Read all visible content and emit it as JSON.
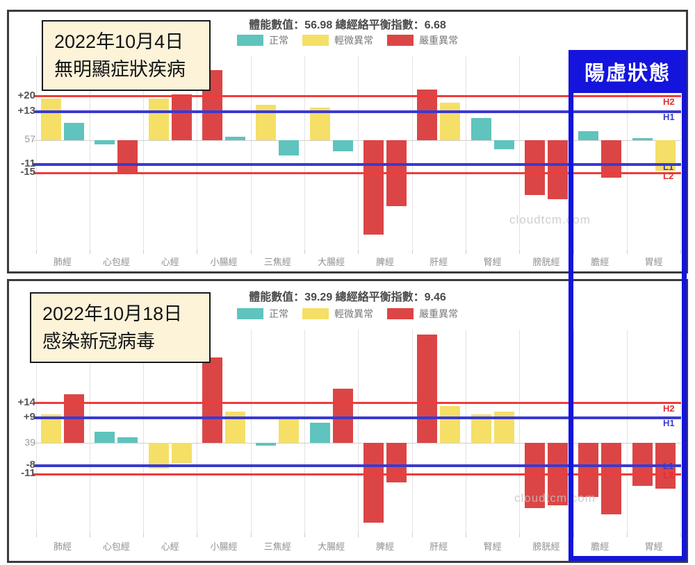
{
  "legend": {
    "normal": "正常",
    "mild": "輕微異常",
    "severe": "嚴重異常"
  },
  "watermark": "cloudtcm.com",
  "highlight_box": {
    "label": "陽虛狀態"
  },
  "colors": {
    "normal": "#5ec4bd",
    "mild": "#f5df66",
    "severe": "#dc4545",
    "line_high": "#ef3b3b",
    "line_low": "#3a3ad0",
    "highlight": "#1414dd",
    "annotation_bg": "#fcf3d9"
  },
  "charts": [
    {
      "title": "體能數值：56.98 總經絡平衡指數：6.68",
      "annotation": {
        "line1": "2022年10月4日",
        "line2": "無明顯症狀疾病"
      },
      "y_axis": {
        "h2": "+20",
        "h1": "+13",
        "baseline": "57",
        "l1": "-11",
        "l2": "-15"
      },
      "right_labels": {
        "h2": "H2",
        "h1": "H1",
        "l1": "L1",
        "l2": "L2"
      },
      "chart_data": {
        "type": "bar",
        "title": "體能數值：56.98 總經絡平衡指數：6.68",
        "categories": [
          "肺經",
          "心包經",
          "心經",
          "小腸經",
          "三焦經",
          "大腸經",
          "脾經",
          "肝經",
          "腎經",
          "膀胱經",
          "膽經",
          "胃經"
        ],
        "baseline_value": 57,
        "thresholds": {
          "H2": 20,
          "H1": 13,
          "L1": -11,
          "L2": -15
        },
        "legend_entries": [
          "正常",
          "輕微異常",
          "嚴重異常"
        ],
        "series": [
          {
            "name": "bar1",
            "values": [
              19,
              -2,
              19,
              32,
              16,
              15,
              -43,
              23,
              10,
              -25,
              4,
              1
            ],
            "status": [
              "mild",
              "normal",
              "mild",
              "severe",
              "mild",
              "mild",
              "severe",
              "severe",
              "normal",
              "severe",
              "normal",
              "normal"
            ]
          },
          {
            "name": "bar2",
            "values": [
              8,
              -15,
              21,
              1.5,
              -7,
              -5,
              -30,
              17,
              -4,
              -27,
              -17,
              -14
            ],
            "status": [
              "normal",
              "severe",
              "severe",
              "normal",
              "normal",
              "normal",
              "severe",
              "mild",
              "normal",
              "severe",
              "severe",
              "mild"
            ]
          }
        ]
      }
    },
    {
      "title": "體能數值：39.29 總經絡平衡指數：9.46",
      "annotation": {
        "line1": "2022年10月18日",
        "line2": "感染新冠病毒"
      },
      "y_axis": {
        "h2": "+14",
        "h1": "+9",
        "baseline": "39",
        "l1": "-8",
        "l2": "-11"
      },
      "right_labels": {
        "h2": "H2",
        "h1": "H1",
        "l1": "L1",
        "l2": "L2"
      },
      "chart_data": {
        "type": "bar",
        "title": "體能數值：39.29 總經絡平衡指數：9.46",
        "categories": [
          "肺經",
          "心包經",
          "心經",
          "小腸經",
          "三焦經",
          "大腸經",
          "脾經",
          "肝經",
          "腎經",
          "膀胱經",
          "膽經",
          "胃經"
        ],
        "baseline_value": 39,
        "thresholds": {
          "H2": 14,
          "H1": 9,
          "L1": -8,
          "L2": -11
        },
        "legend_entries": [
          "正常",
          "輕微異常",
          "嚴重異常"
        ],
        "series": [
          {
            "name": "bar1",
            "values": [
              10,
              4,
              -9,
              30,
              -1,
              7,
              -28,
              38,
              10,
              -23,
              -19,
              -15
            ],
            "status": [
              "mild",
              "normal",
              "mild",
              "severe",
              "normal",
              "normal",
              "severe",
              "severe",
              "mild",
              "severe",
              "severe",
              "severe"
            ]
          },
          {
            "name": "bar2",
            "values": [
              17,
              2,
              -7,
              11,
              9,
              19,
              -14,
              13,
              11,
              -22,
              -25,
              -16
            ],
            "status": [
              "severe",
              "normal",
              "mild",
              "mild",
              "mild",
              "severe",
              "severe",
              "mild",
              "mild",
              "severe",
              "severe",
              "severe"
            ]
          }
        ]
      }
    }
  ]
}
